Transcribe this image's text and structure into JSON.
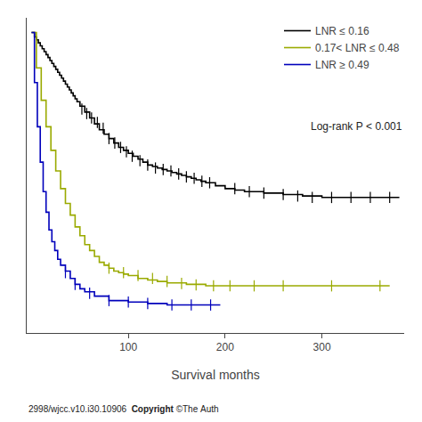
{
  "chart_data": {
    "type": "step",
    "x_label": "Survival months",
    "xlim": [
      -5,
      385
    ],
    "xticks": [
      100,
      200,
      300
    ],
    "ylim": [
      -0.02,
      1.05
    ],
    "yticks": [],
    "tick_labels": "x",
    "grid": false,
    "legend": "upper right",
    "marker": "line-ns",
    "annotations": [
      "Log-rank P < 0.001",
      "2998/wjcc.v10.i30.10906  ",
      "Copyright",
      " ©The Auth"
    ],
    "series": [
      {
        "name": "LNR ≤ 0.16",
        "color": "#000000",
        "x": [
          0,
          3,
          5,
          7,
          9,
          11,
          13,
          15,
          17,
          19,
          21,
          23,
          25,
          27,
          29,
          31,
          33,
          35,
          37,
          39,
          41,
          43,
          45,
          47,
          50,
          55,
          60,
          65,
          70,
          75,
          80,
          85,
          90,
          95,
          100,
          105,
          110,
          115,
          120,
          125,
          130,
          135,
          140,
          145,
          150,
          155,
          160,
          165,
          170,
          175,
          180,
          190,
          200,
          210,
          220,
          240,
          260,
          280,
          300,
          320,
          360,
          380
        ],
        "values": [
          1.0,
          0.985,
          0.975,
          0.965,
          0.955,
          0.945,
          0.935,
          0.925,
          0.915,
          0.905,
          0.895,
          0.885,
          0.875,
          0.865,
          0.855,
          0.845,
          0.835,
          0.825,
          0.815,
          0.805,
          0.795,
          0.785,
          0.775,
          0.765,
          0.75,
          0.73,
          0.71,
          0.69,
          0.67,
          0.655,
          0.64,
          0.625,
          0.61,
          0.6,
          0.59,
          0.58,
          0.57,
          0.56,
          0.55,
          0.545,
          0.54,
          0.535,
          0.53,
          0.525,
          0.52,
          0.515,
          0.51,
          0.505,
          0.5,
          0.495,
          0.49,
          0.48,
          0.47,
          0.465,
          0.46,
          0.455,
          0.45,
          0.445,
          0.44,
          0.44,
          0.44,
          0.44
        ],
        "censor_x": [
          52,
          57,
          62,
          68,
          74,
          80,
          86,
          92,
          98,
          104,
          112,
          120,
          128,
          136,
          144,
          152,
          160,
          168,
          176,
          184,
          210,
          225,
          240,
          260,
          275,
          290,
          310,
          330,
          350,
          370
        ],
        "censor_y": [
          0.74,
          0.725,
          0.71,
          0.695,
          0.675,
          0.64,
          0.625,
          0.61,
          0.595,
          0.58,
          0.565,
          0.55,
          0.54,
          0.535,
          0.53,
          0.52,
          0.51,
          0.505,
          0.495,
          0.49,
          0.47,
          0.46,
          0.455,
          0.45,
          0.445,
          0.44,
          0.44,
          0.44,
          0.44,
          0.44
        ]
      },
      {
        "name": "0.17< LNR ≤ 0.48",
        "color": "#9aaa00",
        "x": [
          0,
          5,
          10,
          15,
          20,
          25,
          30,
          35,
          40,
          45,
          50,
          55,
          60,
          65,
          70,
          75,
          80,
          85,
          90,
          95,
          100,
          110,
          120,
          130,
          140,
          160,
          180,
          200,
          220,
          250,
          280,
          320,
          370
        ],
        "values": [
          1.0,
          0.88,
          0.77,
          0.68,
          0.6,
          0.53,
          0.47,
          0.42,
          0.38,
          0.34,
          0.31,
          0.28,
          0.26,
          0.24,
          0.22,
          0.21,
          0.2,
          0.19,
          0.185,
          0.18,
          0.175,
          0.165,
          0.16,
          0.155,
          0.15,
          0.145,
          0.14,
          0.14,
          0.14,
          0.14,
          0.14,
          0.14,
          0.14
        ],
        "censor_x": [
          80,
          95,
          110,
          125,
          140,
          155,
          170,
          188,
          205,
          230,
          260,
          310,
          360
        ],
        "censor_y": [
          0.2,
          0.185,
          0.175,
          0.165,
          0.155,
          0.148,
          0.143,
          0.14,
          0.14,
          0.14,
          0.14,
          0.14,
          0.14
        ]
      },
      {
        "name": "LNR ≥ 0.49",
        "color": "#0000bb",
        "x": [
          0,
          3,
          6,
          9,
          12,
          15,
          18,
          21,
          24,
          27,
          30,
          35,
          40,
          45,
          50,
          55,
          65,
          80,
          100,
          120,
          140,
          165,
          195
        ],
        "values": [
          1.0,
          0.83,
          0.68,
          0.56,
          0.46,
          0.39,
          0.33,
          0.29,
          0.26,
          0.23,
          0.21,
          0.19,
          0.165,
          0.145,
          0.13,
          0.12,
          0.105,
          0.09,
          0.085,
          0.08,
          0.075,
          0.075,
          0.075
        ],
        "censor_x": [
          35,
          45,
          60,
          80,
          100,
          120,
          145,
          165,
          185
        ],
        "censor_y": [
          0.185,
          0.145,
          0.115,
          0.09,
          0.085,
          0.08,
          0.075,
          0.075,
          0.075
        ]
      }
    ]
  }
}
